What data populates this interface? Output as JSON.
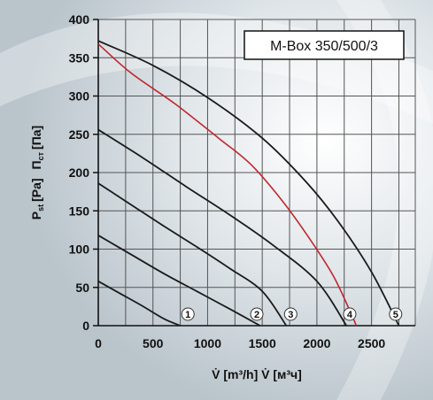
{
  "chart_data": {
    "type": "line",
    "title": "M-Box 350/500/3",
    "xlabel": "V̇ [m³/h]  V̇ [м³ч]",
    "ylabel_en": "P",
    "ylabel_en_sub": "st",
    "ylabel_en_unit": "[Pa]",
    "ylabel_ru": "П",
    "ylabel_ru_sub": "ст",
    "ylabel_ru_unit": "[Па]",
    "xlim": [
      0,
      2900
    ],
    "ylim": [
      0,
      400
    ],
    "x_ticks": [
      0,
      500,
      1000,
      1500,
      2000,
      2500
    ],
    "y_ticks": [
      0,
      50,
      100,
      150,
      200,
      250,
      300,
      350,
      400
    ],
    "grid": true,
    "colors": {
      "speed": "#1a1a1a",
      "operating": "#c0272d",
      "grid": "#555555"
    },
    "series": [
      {
        "name": "1",
        "x": [
          0,
          200,
          400,
          600,
          750
        ],
        "y": [
          58,
          42,
          26,
          9,
          0
        ]
      },
      {
        "name": "2",
        "x": [
          0,
          300,
          600,
          900,
          1200,
          1480
        ],
        "y": [
          118,
          93,
          68,
          45,
          22,
          0
        ]
      },
      {
        "name": "3",
        "x": [
          0,
          300,
          600,
          900,
          1200,
          1500,
          1720
        ],
        "y": [
          186,
          158,
          130,
          103,
          75,
          45,
          0
        ]
      },
      {
        "name": "4",
        "x": [
          0,
          400,
          800,
          1200,
          1600,
          2000,
          2270
        ],
        "y": [
          256,
          220,
          182,
          145,
          105,
          58,
          0
        ]
      },
      {
        "name": "5",
        "x": [
          0,
          500,
          1000,
          1500,
          1900,
          2200,
          2500,
          2750
        ],
        "y": [
          372,
          340,
          298,
          245,
          188,
          135,
          70,
          0
        ]
      },
      {
        "name": "",
        "x": [
          0,
          300,
          700,
          1100,
          1400,
          1700,
          1950,
          2150,
          2300,
          2360
        ],
        "y": [
          368,
          330,
          290,
          245,
          210,
          160,
          110,
          65,
          20,
          0
        ]
      }
    ],
    "markers": [
      {
        "label": "1",
        "x": 820
      },
      {
        "label": "2",
        "x": 1450
      },
      {
        "label": "3",
        "x": 1760
      },
      {
        "label": "4",
        "x": 2300
      },
      {
        "label": "5",
        "x": 2720
      }
    ]
  }
}
